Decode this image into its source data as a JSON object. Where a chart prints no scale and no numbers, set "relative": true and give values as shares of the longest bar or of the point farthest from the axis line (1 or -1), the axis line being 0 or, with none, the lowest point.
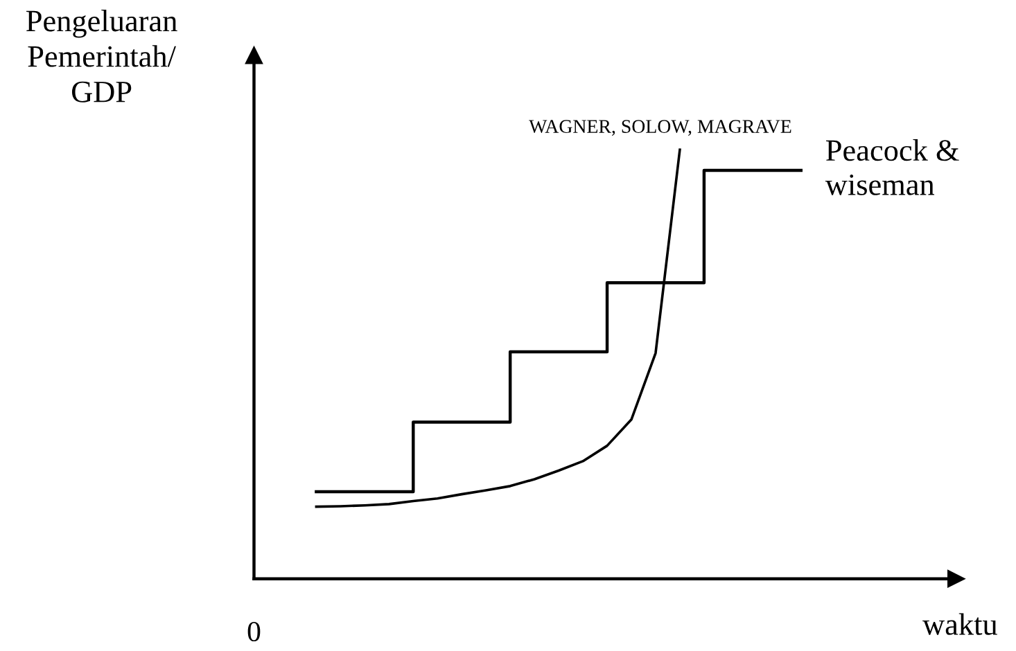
{
  "chart_data": {
    "type": "line",
    "relative": true,
    "ylabel": "Pengeluaran\nPemerintah/\nGDP",
    "xlabel": "waktu",
    "annotations": [
      "0"
    ],
    "legend": false,
    "marker": "none",
    "line_style": "solid",
    "grid": false,
    "categories": [
      null,
      null,
      null,
      null,
      null,
      null,
      null,
      null,
      null,
      null,
      null,
      null,
      null,
      null,
      null,
      null,
      null,
      null,
      null,
      null,
      null
    ],
    "series": [
      {
        "name": "WAGNER, SOLOW, MAGRAVE",
        "color": "#000000",
        "values": [
          0.168,
          0.169,
          0.171,
          0.174,
          0.181,
          0.187,
          0.197,
          0.206,
          0.216,
          0.232,
          0.252,
          0.274,
          0.31,
          0.371,
          0.526,
          1.0,
          null,
          null,
          null,
          null,
          null
        ]
      },
      {
        "name": "Peacock &\nwiseman",
        "type": "step",
        "color": "#000000",
        "values": [
          0.203,
          0.203,
          0.203,
          0.203,
          0.365,
          0.365,
          0.365,
          0.365,
          0.529,
          0.529,
          0.529,
          0.529,
          0.69,
          0.69,
          0.69,
          0.69,
          0.952,
          0.952,
          0.952,
          0.952,
          0.952
        ]
      }
    ]
  }
}
